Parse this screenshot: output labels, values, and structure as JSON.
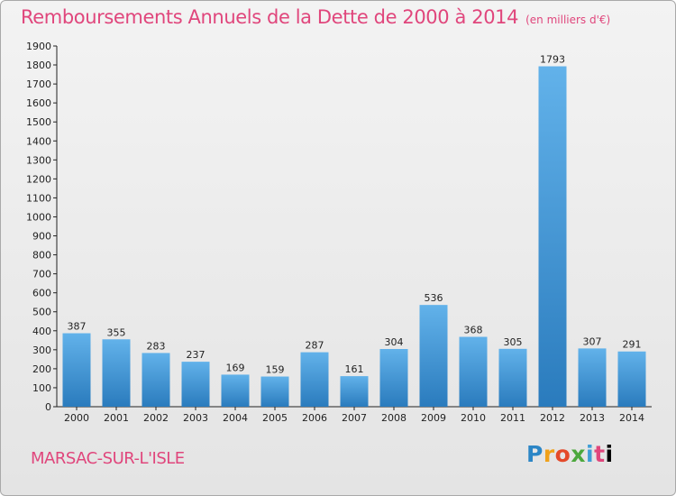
{
  "header": {
    "title": "Remboursements Annuels de la Dette de 2000 à 2014",
    "subtitle": "(en milliers d'€)"
  },
  "footer": {
    "city": "MARSAC-SUR-L'ISLE",
    "brand_letters": [
      "P",
      "r",
      "o",
      "x",
      "i",
      "t",
      "i"
    ]
  },
  "colors": {
    "title": "#e0467c",
    "bar_light": "#62b2ea",
    "bar_dark": "#2a7bbd"
  },
  "chart_data": {
    "type": "bar",
    "title": "Remboursements Annuels de la Dette de 2000 à 2014",
    "subtitle": "(en milliers d'€)",
    "xlabel": "",
    "ylabel": "",
    "categories": [
      "2000",
      "2001",
      "2002",
      "2003",
      "2004",
      "2005",
      "2006",
      "2007",
      "2008",
      "2009",
      "2010",
      "2011",
      "2012",
      "2013",
      "2014"
    ],
    "values": [
      387,
      355,
      283,
      237,
      169,
      159,
      287,
      161,
      304,
      536,
      368,
      305,
      1793,
      307,
      291
    ],
    "ylim": [
      0,
      1900
    ],
    "yticks": [
      0,
      100,
      200,
      300,
      400,
      500,
      600,
      700,
      800,
      900,
      1000,
      1100,
      1200,
      1300,
      1400,
      1500,
      1600,
      1700,
      1800,
      1900
    ],
    "grid": false,
    "legend": "none"
  }
}
